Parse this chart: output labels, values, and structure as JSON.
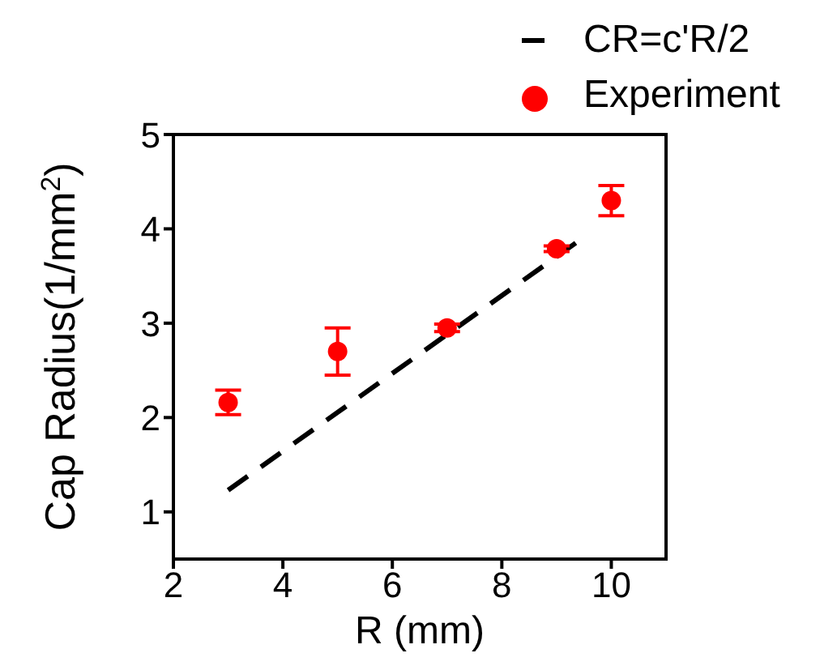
{
  "chart_data": {
    "type": "scatter",
    "xlabel": "R (mm)",
    "ylabel": "Cap Radius(1/mm$^{2}$)",
    "xlim": [
      2,
      11
    ],
    "xticks": [
      2,
      4,
      6,
      8,
      10
    ],
    "ylim": [
      0.5,
      5
    ],
    "yticks": [
      1,
      2,
      3,
      4,
      5
    ],
    "legend": "top right",
    "grid": false,
    "series": [
      {
        "name": "CR=c'R/2",
        "type": "line",
        "line_style": "dashed",
        "marker": "none",
        "color": "#000000",
        "x": [
          3,
          9.35
        ],
        "values": [
          1.23,
          3.85
        ]
      },
      {
        "name": "Experiment",
        "type": "scatter",
        "marker": "circle",
        "color": "#ff0000",
        "x": [
          3,
          5,
          7,
          9,
          10
        ],
        "values": [
          2.16,
          2.7,
          2.95,
          3.79,
          4.3
        ],
        "errors": [
          0.13,
          0.25,
          0.04,
          0.03,
          0.16
        ]
      }
    ]
  }
}
